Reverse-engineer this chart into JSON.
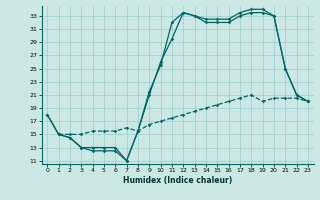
{
  "xlabel": "Humidex (Indice chaleur)",
  "bg_color": "#cce8e4",
  "line_color": "#006666",
  "grid_color": "#99cccc",
  "xlim": [
    -0.5,
    23.5
  ],
  "ylim": [
    10.5,
    34.5
  ],
  "yticks": [
    11,
    13,
    15,
    17,
    19,
    21,
    23,
    25,
    27,
    29,
    31,
    33
  ],
  "xticks": [
    0,
    1,
    2,
    3,
    4,
    5,
    6,
    7,
    8,
    9,
    10,
    11,
    12,
    13,
    14,
    15,
    16,
    17,
    18,
    19,
    20,
    21,
    22,
    23
  ],
  "line1_x": [
    0,
    1,
    2,
    3,
    4,
    5,
    6,
    7,
    8,
    9,
    10,
    11,
    12,
    13,
    14,
    15,
    16,
    17,
    18,
    19,
    20,
    21,
    22,
    23
  ],
  "line1_y": [
    18,
    15,
    14.5,
    13,
    12.5,
    12.5,
    12.5,
    11,
    15.5,
    21.5,
    25.5,
    32,
    33.5,
    33,
    32.5,
    32.5,
    32.5,
    33.5,
    34,
    34,
    33,
    25,
    21,
    20
  ],
  "line2_x": [
    0,
    1,
    2,
    3,
    4,
    5,
    6,
    7,
    8,
    9,
    10,
    11,
    12,
    13,
    14,
    15,
    16,
    17,
    18,
    19,
    20,
    21,
    22,
    23
  ],
  "line2_y": [
    18,
    15,
    14.5,
    13,
    13,
    13,
    13,
    11,
    15.5,
    21,
    26,
    29.5,
    33.5,
    33,
    32,
    32,
    32,
    33,
    33.5,
    33.5,
    33,
    25,
    21,
    20
  ],
  "line3_x": [
    1,
    2,
    3,
    4,
    5,
    6,
    7,
    8,
    9,
    10,
    11,
    12,
    13,
    14,
    15,
    16,
    17,
    18,
    19,
    20,
    21,
    22,
    23
  ],
  "line3_y": [
    15,
    15,
    15,
    15.5,
    15.5,
    15.5,
    16,
    15.5,
    16.5,
    17,
    17.5,
    18,
    18.5,
    19,
    19.5,
    20,
    20.5,
    21,
    20,
    20.5,
    20.5,
    20.5,
    20
  ]
}
